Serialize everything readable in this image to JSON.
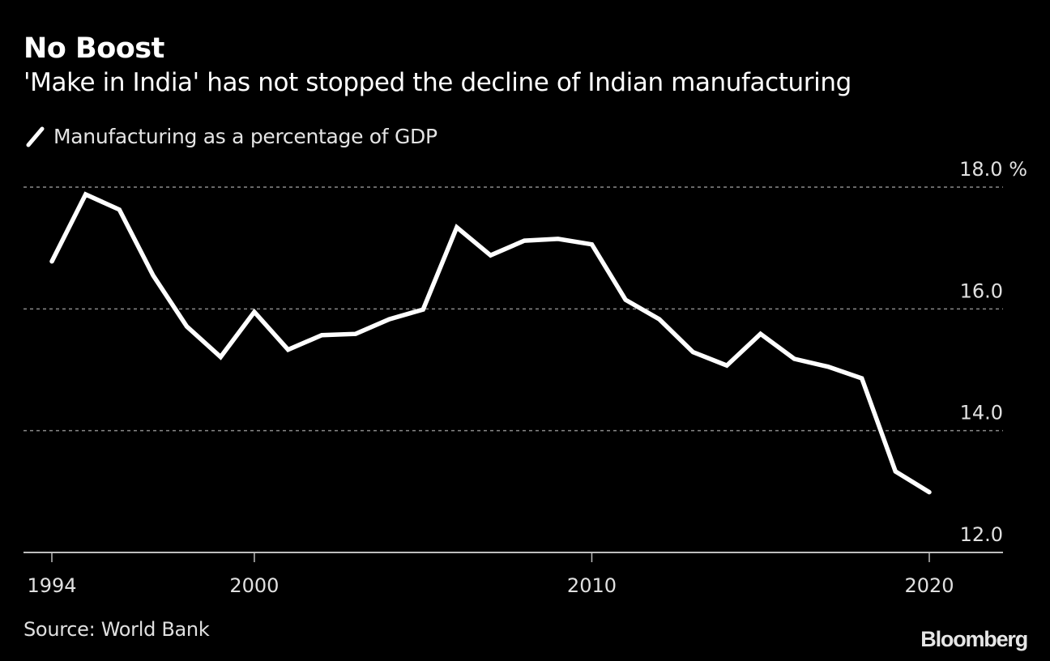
{
  "header": {
    "title": "No Boost",
    "subtitle": "'Make in India' has not stopped the decline of Indian manufacturing"
  },
  "legend": {
    "icon": "line-swatch-icon",
    "label": "Manufacturing as a percentage of GDP"
  },
  "footer": {
    "source": "Source: World Bank",
    "logo": "Bloomberg"
  },
  "colors": {
    "background": "#000000",
    "line": "#ffffff",
    "grid": "#8a8a8a",
    "axis": "#bdbdbd",
    "text": "#e0e0e0"
  },
  "chart_data": {
    "type": "line",
    "title": "No Boost",
    "subtitle": "'Make in India' has not stopped the decline of Indian manufacturing",
    "xlabel": "",
    "ylabel": "%",
    "x": [
      1994,
      1995,
      1996,
      1997,
      1998,
      1999,
      2000,
      2001,
      2002,
      2003,
      2004,
      2005,
      2006,
      2007,
      2008,
      2009,
      2010,
      2011,
      2012,
      2013,
      2014,
      2015,
      2016,
      2017,
      2018,
      2019,
      2020
    ],
    "series": [
      {
        "name": "Manufacturing as a percentage of GDP",
        "values": [
          16.78,
          17.88,
          17.63,
          16.55,
          15.71,
          15.21,
          15.95,
          15.33,
          15.57,
          15.59,
          15.83,
          15.99,
          17.34,
          16.88,
          17.12,
          17.15,
          17.06,
          16.15,
          15.83,
          15.29,
          15.07,
          15.59,
          15.18,
          15.05,
          14.86,
          13.33,
          12.99
        ]
      }
    ],
    "xlim": [
      1993,
      2022.2
    ],
    "ylim": [
      12.0,
      18.0
    ],
    "x_ticks": [
      1994,
      2000,
      2010,
      2020
    ],
    "x_tick_labels": [
      "1994",
      "2000",
      "2010",
      "2020"
    ],
    "y_ticks": [
      12.0,
      14.0,
      16.0,
      18.0
    ],
    "y_tick_labels": [
      "12.0",
      "14.0",
      "16.0",
      "18.0 %"
    ],
    "y_axis_side": "right",
    "grid": true,
    "grid_style": "dotted horizontal",
    "legend_position": "top-left",
    "source": "Source: World Bank"
  }
}
